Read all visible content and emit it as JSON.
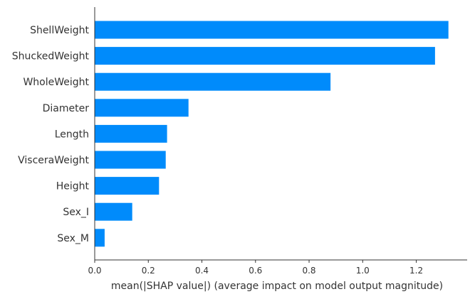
{
  "chart_data": {
    "type": "bar",
    "orientation": "horizontal",
    "categories": [
      "ShellWeight",
      "ShuckedWeight",
      "WholeWeight",
      "Diameter",
      "Length",
      "VisceraWeight",
      "Height",
      "Sex_I",
      "Sex_M"
    ],
    "values": [
      1.32,
      1.27,
      0.88,
      0.35,
      0.27,
      0.265,
      0.24,
      0.14,
      0.037
    ],
    "xlabel": "mean(|SHAP value|) (average impact on model output magnitude)",
    "ylabel": "",
    "title": "",
    "xlim": [
      0,
      1.35
    ],
    "xticks": [
      "0.0",
      "0.2",
      "0.4",
      "0.6",
      "0.8",
      "1.0",
      "1.2"
    ],
    "grid": false,
    "bar_color": "#008bfb",
    "axis_color": "#333333"
  }
}
